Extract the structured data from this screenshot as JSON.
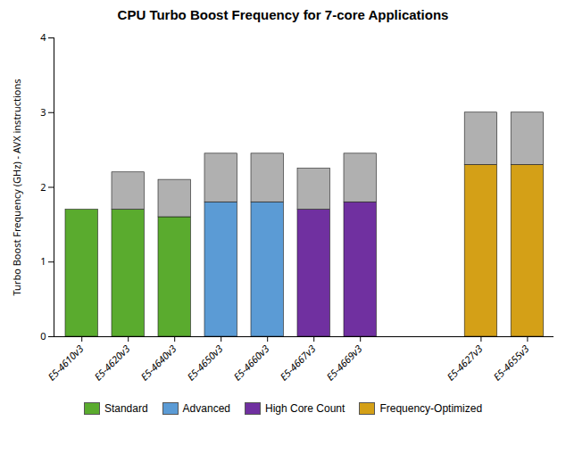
{
  "chart_data": {
    "type": "bar",
    "stacked": true,
    "title": "CPU Turbo Boost Frequency for 7-core Applications",
    "ylabel": "Turbo Boost Frequency (GHz) - AVX instructions",
    "categories": [
      "E5-4610v3",
      "E5-4620v3",
      "E5-4640v3",
      "E5-4650v3",
      "E5-4660v3",
      "E5-4667v3",
      "E5-4669v3",
      "E5-4627v3",
      "E5-4655v3"
    ],
    "series": [
      {
        "values": [
          1.7,
          1.7,
          1.6,
          1.8,
          1.8,
          1.7,
          1.8,
          2.3,
          2.3
        ],
        "colors": [
          "#5aab2e",
          "#5aab2e",
          "#5aab2e",
          "#5b9bd5",
          "#5b9bd5",
          "#7030a0",
          "#7030a0",
          "#d4a017",
          "#d4a017"
        ]
      },
      {
        "values": [
          0.0,
          0.5,
          0.5,
          0.65,
          0.65,
          0.55,
          0.65,
          0.7,
          0.7
        ],
        "color": "#b0b0b0"
      }
    ],
    "legend": "bottom",
    "legend_entries": [
      {
        "name": "Standard",
        "color": "#5aab2e"
      },
      {
        "name": "Advanced",
        "color": "#5b9bd5"
      },
      {
        "name": "High Core Count",
        "color": "#7030a0"
      },
      {
        "name": "Frequency-Optimized",
        "color": "#d4a017"
      }
    ],
    "ylim": [
      0,
      4
    ],
    "yticks": [
      0,
      1,
      2,
      3,
      4
    ]
  }
}
